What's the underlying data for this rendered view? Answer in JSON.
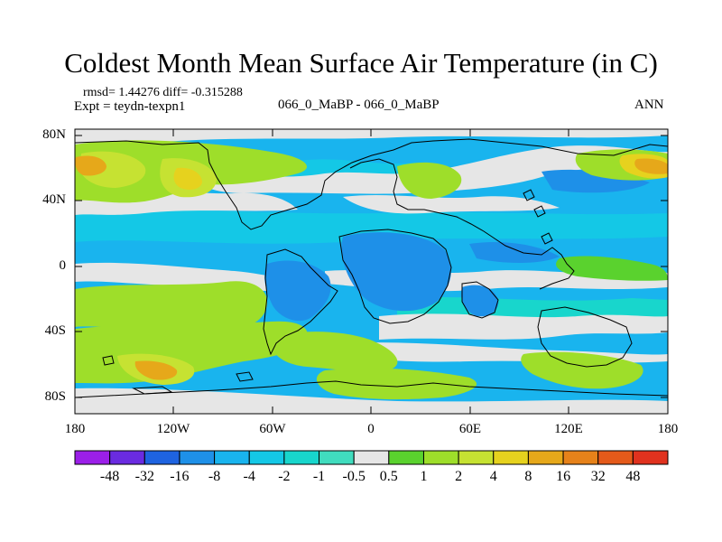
{
  "title": "Coldest Month Mean Surface Air Temperature (in C)",
  "stats_line": "rmsd= 1.44276 diff= -0.315288",
  "expt_line": "Expt = teydn-texpn1",
  "center_label": "066_0_MaBP - 066_0_MaBP",
  "season_label": "ANN",
  "y_axis_labels": [
    "80N",
    "40N",
    "0",
    "40S",
    "80S"
  ],
  "x_axis_labels": [
    "180",
    "120W",
    "60W",
    "0",
    "60E",
    "120E",
    "180"
  ],
  "colorbar": {
    "colors": [
      "#9b1fe8",
      "#6a2be0",
      "#1e63e0",
      "#1e90e8",
      "#19b4ee",
      "#14c8e6",
      "#18d6cc",
      "#40dcbe",
      "#e6e6e6",
      "#5ad22e",
      "#9ede2a",
      "#c6e232",
      "#e6d21e",
      "#e6a81a",
      "#e6821a",
      "#e45a1a",
      "#e0321e"
    ],
    "labels": [
      "-48",
      "-32",
      "-16",
      "-8",
      "-4",
      "-2",
      "-1",
      "-0.5",
      "0.5",
      "1",
      "2",
      "4",
      "8",
      "16",
      "32",
      "48"
    ]
  }
}
